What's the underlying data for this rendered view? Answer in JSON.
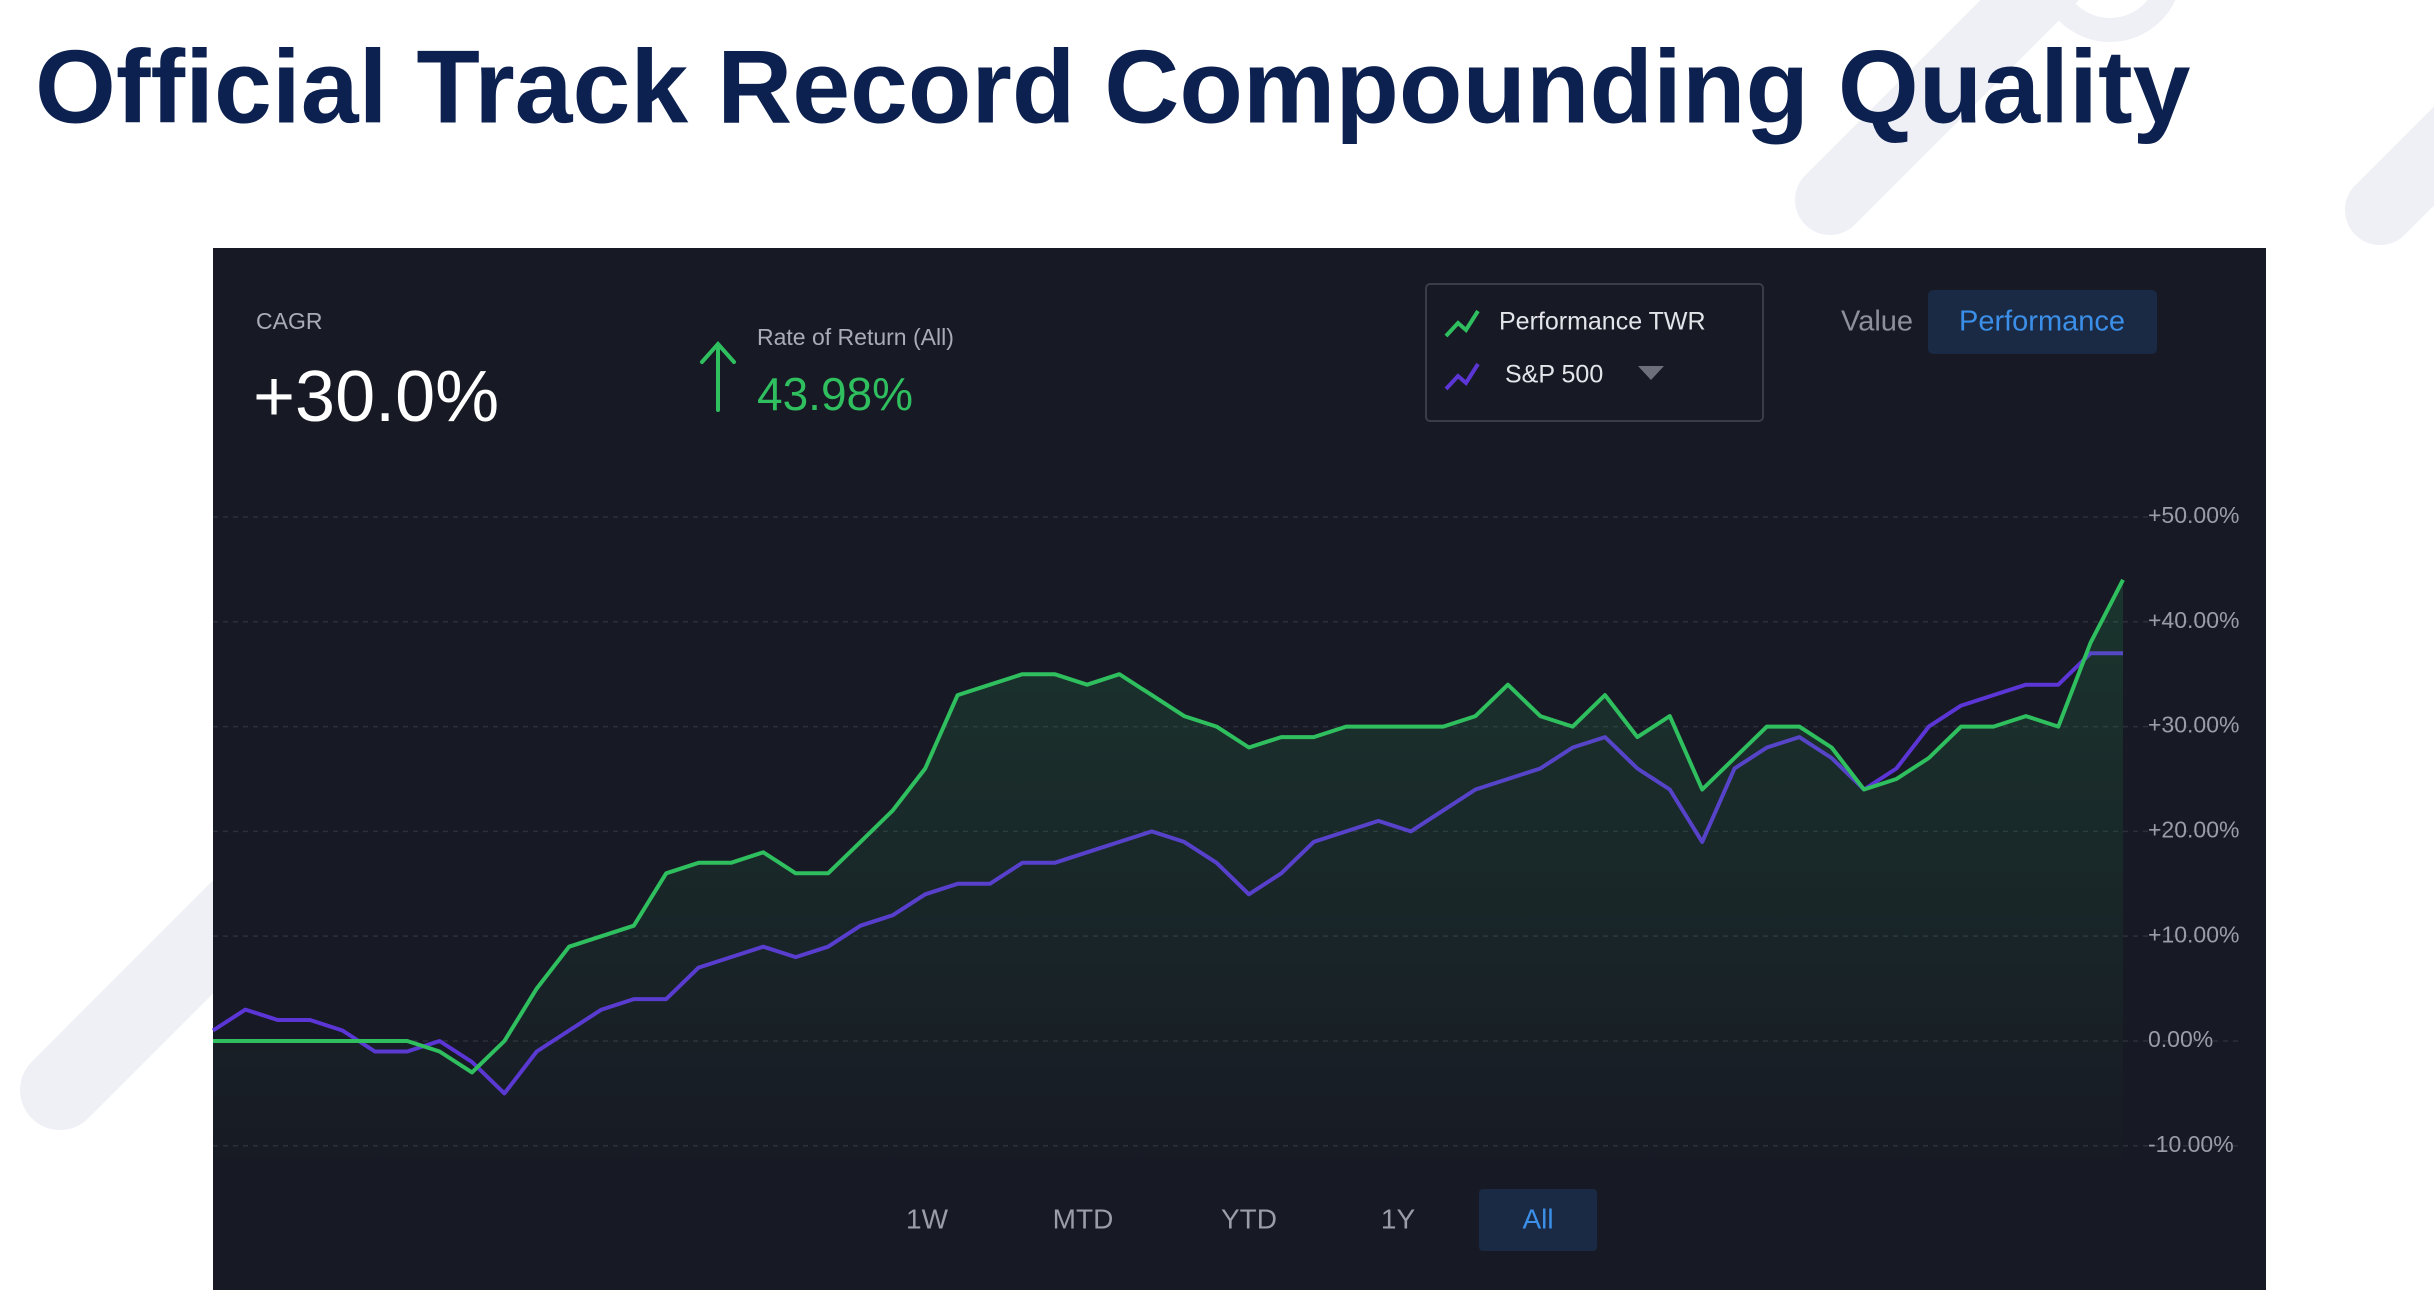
{
  "title": "Official Track Record Compounding Quality",
  "dashboard": {
    "cagr_label": "CAGR",
    "cagr_value": "+30.0%",
    "return_label": "Rate of Return (All)",
    "return_value": "43.98%",
    "tabs": [
      "Value",
      "Performance"
    ],
    "active_tab": 1,
    "ranges": [
      "1W",
      "MTD",
      "YTD",
      "1Y",
      "All"
    ],
    "active_range": 4
  },
  "chart_data": {
    "type": "line",
    "series": [
      {
        "name": "Performance TWR",
        "color": "#2fbf5f",
        "values": [
          0,
          0,
          0,
          0,
          0,
          0,
          0,
          -1,
          -3,
          0,
          5,
          9,
          10,
          11,
          16,
          17,
          17,
          18,
          16,
          16,
          19,
          22,
          26,
          33,
          34,
          35,
          35,
          34,
          35,
          33,
          31,
          30,
          28,
          29,
          29,
          30,
          30,
          30,
          30,
          31,
          34,
          31,
          30,
          33,
          29,
          31,
          24,
          27,
          30,
          30,
          28,
          24,
          25,
          27,
          30,
          30,
          31,
          30,
          38,
          44
        ]
      },
      {
        "name": "S&P 500",
        "color": "#5b35d5",
        "values": [
          1,
          3,
          2,
          2,
          1,
          -1,
          -1,
          0,
          -2,
          -5,
          -1,
          1,
          3,
          4,
          4,
          7,
          8,
          9,
          8,
          9,
          11,
          12,
          14,
          15,
          15,
          17,
          17,
          18,
          19,
          20,
          19,
          17,
          14,
          16,
          19,
          20,
          21,
          20,
          22,
          24,
          25,
          26,
          28,
          29,
          26,
          24,
          19,
          26,
          28,
          29,
          27,
          24,
          26,
          30,
          32,
          33,
          34,
          34,
          37,
          37
        ]
      }
    ],
    "ylim": [
      -12.5,
      52
    ],
    "yticks": [
      {
        "value": -10,
        "label": "-10.00%"
      },
      {
        "value": 0,
        "label": "0.00%"
      },
      {
        "value": 10,
        "label": "+10.00%"
      },
      {
        "value": 20,
        "label": "+20.00%"
      },
      {
        "value": 30,
        "label": "+30.00%"
      },
      {
        "value": 40,
        "label": "+40.00%"
      },
      {
        "value": 50,
        "label": "+50.00%"
      }
    ],
    "grid": true
  }
}
